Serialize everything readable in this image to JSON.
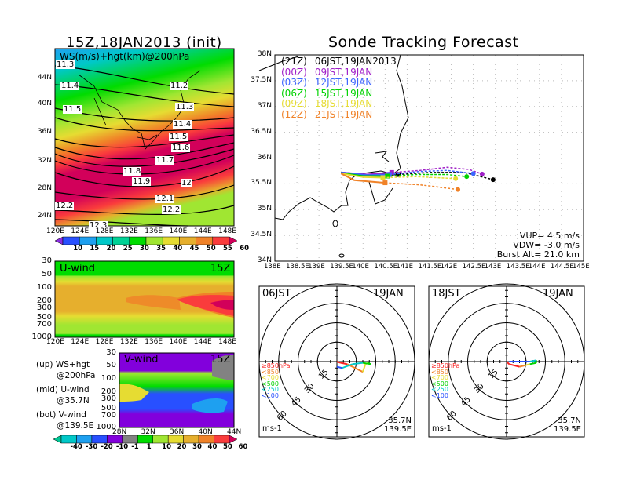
{
  "left_panel": {
    "title": "15Z,18JAN2013 (init)",
    "map_label": "WS(m/s)+hgt(km)@200hPa",
    "lat_ticks": [
      "44N",
      "40N",
      "36N",
      "32N",
      "28N",
      "24N"
    ],
    "lon_ticks": [
      "120E",
      "124E",
      "128E",
      "132E",
      "136E",
      "140E",
      "144E",
      "148E"
    ],
    "contour_labels": [
      "11.3",
      "11.4",
      "11.5",
      "11.2",
      "11.3",
      "11.4",
      "11.5",
      "11.6",
      "11.7",
      "11.8",
      "11.9",
      "12",
      "12.1",
      "12.2",
      "12.2",
      "12.3"
    ],
    "colorbar_labels": [
      "10",
      "15",
      "20",
      "25",
      "30",
      "35",
      "40",
      "45",
      "50",
      "55",
      "60"
    ],
    "colorbar_colors": [
      "#8a2be2",
      "#2850ff",
      "#1ea0f0",
      "#00c8c8",
      "#00d296",
      "#00dc00",
      "#a0e632",
      "#e6dc32",
      "#e6af2d",
      "#f08228",
      "#fa3c3c",
      "#d2005a"
    ]
  },
  "uwind_panel": {
    "title": "U-wind",
    "time": "15Z",
    "p_ticks": [
      "30",
      "50",
      "100",
      "200",
      "300",
      "500",
      "700",
      "1000"
    ],
    "lon_ticks": [
      "120E",
      "124E",
      "128E",
      "132E",
      "136E",
      "140E",
      "144E",
      "148E"
    ]
  },
  "vwind_panel": {
    "title": "V-wind",
    "time": "15Z",
    "p_ticks": [
      "30",
      "50",
      "100",
      "200",
      "300",
      "500",
      "700",
      "1000"
    ],
    "lat_ticks": [
      "28N",
      "32N",
      "36N",
      "40N",
      "44N"
    ],
    "colorbar_labels": [
      "-40",
      "-30",
      "-20",
      "-10",
      "-1",
      "1",
      "10",
      "20",
      "30",
      "40",
      "50",
      "60"
    ],
    "colorbar_colors": [
      "#00c896",
      "#00c8c8",
      "#1ea0f0",
      "#2850ff",
      "#8200dc",
      "#828282",
      "#00dc00",
      "#a0e632",
      "#e6dc32",
      "#e6af2d",
      "#f08228",
      "#fa3c3c",
      "#d2005a"
    ]
  },
  "notes": [
    {
      "a": "(up) WS+hgt",
      "b": "@200hPa"
    },
    {
      "a": "(mid) U-wind",
      "b": "@35.7N"
    },
    {
      "a": "(bot) V-wind",
      "b": "@139.5E"
    }
  ],
  "chart_data": {
    "type": "line",
    "title": "Sonde Tracking Forecast",
    "xlim": [
      138,
      145
    ],
    "ylim": [
      34,
      38
    ],
    "x_ticks": [
      "138E",
      "138.5E",
      "139E",
      "139.5E",
      "140E",
      "140.5E",
      "141E",
      "141.5E",
      "142E",
      "142.5E",
      "143E",
      "143.5E",
      "144E",
      "144.5E",
      "145E"
    ],
    "y_ticks": [
      "38N",
      "37.5N",
      "37N",
      "36.5N",
      "36N",
      "35.5N",
      "35N",
      "34.5N",
      "34N"
    ],
    "grid": true,
    "legend": [
      {
        "code": "(21Z)",
        "label": "06JST,19JAN2013",
        "color": "#000000"
      },
      {
        "code": "(00Z)",
        "label": "09JST,19JAN",
        "color": "#a020c8"
      },
      {
        "code": "(03Z)",
        "label": "12JST,19JAN",
        "color": "#3c64ff"
      },
      {
        "code": "(06Z)",
        "label": "15JST,19JAN",
        "color": "#00d200"
      },
      {
        "code": "(09Z)",
        "label": "18JST,19JAN",
        "color": "#e6dc32"
      },
      {
        "code": "(12Z)",
        "label": "21JST,19JAN",
        "color": "#f08228"
      }
    ],
    "series": [
      {
        "name": "21Z",
        "color": "#000000",
        "ascent": [
          [
            139.5,
            35.72
          ],
          [
            140.0,
            35.68
          ],
          [
            140.8,
            35.68
          ]
        ],
        "descent": [
          [
            140.8,
            35.68
          ],
          [
            141.5,
            35.72
          ],
          [
            142.3,
            35.72
          ],
          [
            142.95,
            35.58
          ]
        ]
      },
      {
        "name": "00Z",
        "color": "#a020c8",
        "ascent": [
          [
            139.5,
            35.72
          ],
          [
            140.1,
            35.68
          ],
          [
            140.65,
            35.72
          ]
        ],
        "descent": [
          [
            140.65,
            35.72
          ],
          [
            141.3,
            35.76
          ],
          [
            141.9,
            35.82
          ],
          [
            142.4,
            35.78
          ],
          [
            142.7,
            35.69
          ]
        ]
      },
      {
        "name": "03Z",
        "color": "#3c64ff",
        "ascent": [
          [
            139.5,
            35.72
          ],
          [
            140.1,
            35.67
          ],
          [
            140.6,
            35.68
          ]
        ],
        "descent": [
          [
            140.6,
            35.68
          ],
          [
            141.3,
            35.74
          ],
          [
            141.9,
            35.76
          ],
          [
            142.5,
            35.7
          ]
        ]
      },
      {
        "name": "06Z",
        "color": "#00d200",
        "ascent": [
          [
            139.5,
            35.71
          ],
          [
            140.0,
            35.65
          ],
          [
            140.55,
            35.65
          ]
        ],
        "descent": [
          [
            140.55,
            35.65
          ],
          [
            141.2,
            35.68
          ],
          [
            141.9,
            35.68
          ],
          [
            142.35,
            35.64
          ]
        ]
      },
      {
        "name": "09Z",
        "color": "#e6dc32",
        "ascent": [
          [
            139.5,
            35.7
          ],
          [
            140.0,
            35.63
          ],
          [
            140.45,
            35.62
          ]
        ],
        "descent": [
          [
            140.45,
            35.62
          ],
          [
            141.2,
            35.64
          ],
          [
            142.1,
            35.6
          ]
        ]
      },
      {
        "name": "12Z",
        "color": "#f08228",
        "ascent": [
          [
            139.5,
            35.7
          ],
          [
            139.8,
            35.57
          ],
          [
            140.5,
            35.52
          ]
        ],
        "descent": [
          [
            140.5,
            35.52
          ],
          [
            141.3,
            35.48
          ],
          [
            142.15,
            35.39
          ]
        ]
      }
    ],
    "info": [
      "VUP= 4.5 m/s",
      "VDW= -3.0 m/s",
      "Burst Alt= 21.0 km"
    ]
  },
  "hodographs": [
    {
      "time": "06JST",
      "date": "19JAN",
      "unit": "ms-1",
      "lat": "35.7N",
      "lon": "139.5E",
      "trace": [
        [
          0,
          0
        ],
        [
          3,
          -1
        ],
        [
          8,
          -2
        ],
        [
          14,
          -5
        ],
        [
          20,
          -8
        ],
        [
          22,
          -2
        ],
        [
          24,
          -1
        ],
        [
          26,
          -2
        ],
        [
          20,
          -1
        ],
        [
          12,
          -2
        ],
        [
          4,
          -5
        ],
        [
          0,
          -4
        ]
      ]
    },
    {
      "time": "18JST",
      "date": "19JAN",
      "unit": "ms-1",
      "lat": "35.7N",
      "lon": "139.5E",
      "trace": [
        [
          0,
          0
        ],
        [
          2,
          -2
        ],
        [
          10,
          -4
        ],
        [
          14,
          -3
        ],
        [
          18,
          -2
        ],
        [
          23,
          -1
        ],
        [
          23,
          1
        ],
        [
          18,
          0
        ],
        [
          2,
          0
        ]
      ]
    }
  ],
  "hodo_rings": [
    "15",
    "30",
    "45",
    "60"
  ],
  "hodo_legend": [
    {
      "label": "≥850hPa",
      "color": "#fa1e1e"
    },
    {
      "label": "<850",
      "color": "#f08228"
    },
    {
      "label": "<700",
      "color": "#e6dc32"
    },
    {
      "label": "<500",
      "color": "#00d200"
    },
    {
      "label": "<250",
      "color": "#00c8c8"
    },
    {
      "label": "<100",
      "color": "#2850ff"
    }
  ]
}
